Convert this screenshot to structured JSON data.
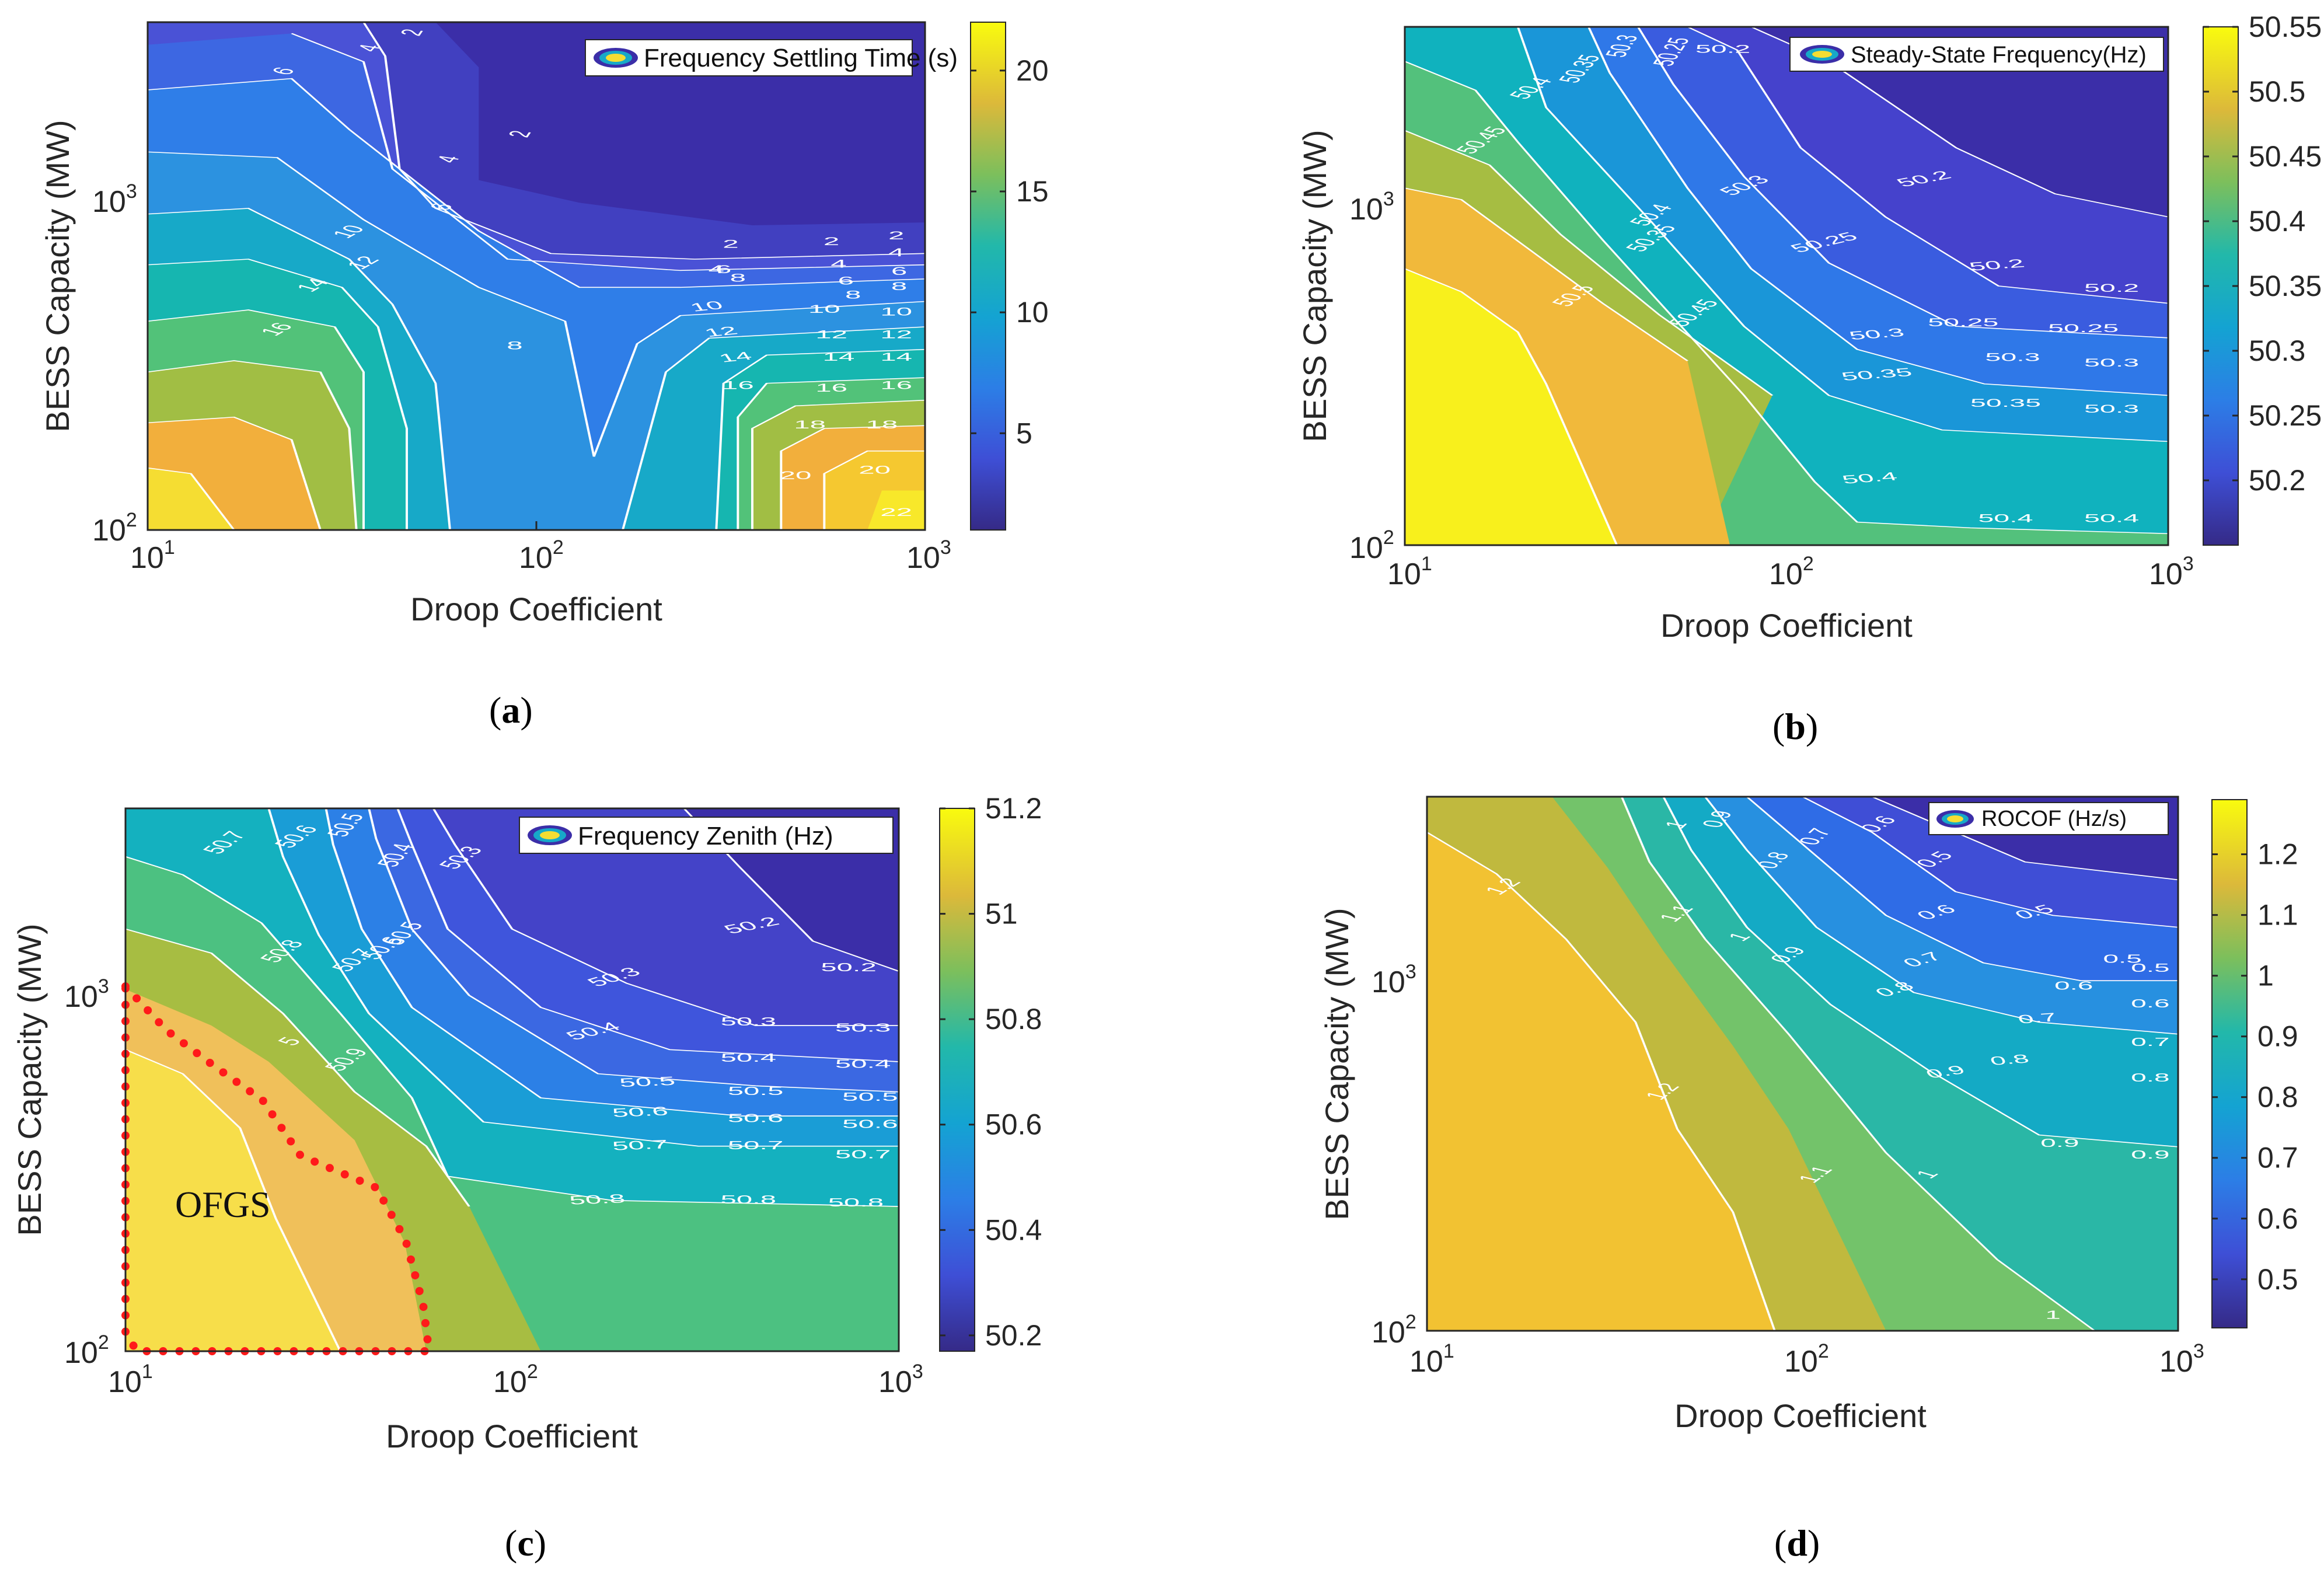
{
  "chart_data": [
    {
      "type": "contour",
      "id": "a",
      "caption_letter": "a",
      "legend": "Frequency Settling Time (s)",
      "xlabel": "Droop Coefficient",
      "ylabel": "BESS Capacity (MW)",
      "xscale": "log",
      "yscale": "log",
      "xlim": [
        10,
        1000
      ],
      "ylim": [
        100,
        3200
      ],
      "xticks": [
        {
          "base": "10",
          "exp": "1"
        },
        {
          "base": "10",
          "exp": "2"
        },
        {
          "base": "10",
          "exp": "3"
        }
      ],
      "yticks": [
        {
          "base": "10",
          "exp": "2"
        },
        {
          "base": "10",
          "exp": "3"
        }
      ],
      "colorbar": {
        "min": 1,
        "max": 22,
        "ticks": [
          "5",
          "10",
          "15",
          "20"
        ]
      },
      "levels": [
        22,
        20,
        18,
        16,
        14,
        12,
        10,
        8,
        6,
        4,
        2
      ],
      "contour_labels": [
        {
          "t": "2",
          "x": 190,
          "y": 20,
          "rot": -75
        },
        {
          "t": "4",
          "x": 160,
          "y": 48,
          "rot": -70
        },
        {
          "t": "6",
          "x": 100,
          "y": 90,
          "rot": -60
        },
        {
          "t": "2",
          "x": 265,
          "y": 200,
          "rot": -75
        },
        {
          "t": "4",
          "x": 215,
          "y": 245,
          "rot": -70
        },
        {
          "t": "6",
          "x": 210,
          "y": 330,
          "rot": -65
        },
        {
          "t": "10",
          "x": 145,
          "y": 375,
          "rot": -55
        },
        {
          "t": "12",
          "x": 155,
          "y": 430,
          "rot": -55
        },
        {
          "t": "14",
          "x": 120,
          "y": 470,
          "rot": -55
        },
        {
          "t": "16",
          "x": 95,
          "y": 548,
          "rot": -55
        },
        {
          "t": "8",
          "x": 255,
          "y": 580,
          "rot": 0
        },
        {
          "t": "2",
          "x": 405,
          "y": 400,
          "rot": 0
        },
        {
          "t": "4",
          "x": 395,
          "y": 445,
          "rot": 0
        },
        {
          "t": "6",
          "x": 400,
          "y": 445,
          "rot": 0
        },
        {
          "t": "8",
          "x": 410,
          "y": 460,
          "rot": 0
        },
        {
          "t": "10",
          "x": 390,
          "y": 510,
          "rot": -15
        },
        {
          "t": "12",
          "x": 400,
          "y": 555,
          "rot": -15
        },
        {
          "t": "14",
          "x": 410,
          "y": 600,
          "rot": -15
        },
        {
          "t": "16",
          "x": 410,
          "y": 650,
          "rot": 0
        },
        {
          "t": "2",
          "x": 475,
          "y": 395,
          "rot": 0
        },
        {
          "t": "4",
          "x": 480,
          "y": 435,
          "rot": 0
        },
        {
          "t": "6",
          "x": 485,
          "y": 465,
          "rot": 0
        },
        {
          "t": "8",
          "x": 490,
          "y": 490,
          "rot": 0
        },
        {
          "t": "10",
          "x": 470,
          "y": 515,
          "rot": 0
        },
        {
          "t": "12",
          "x": 475,
          "y": 560,
          "rot": 0
        },
        {
          "t": "14",
          "x": 480,
          "y": 600,
          "rot": 0
        },
        {
          "t": "16",
          "x": 475,
          "y": 655,
          "rot": 0
        },
        {
          "t": "18",
          "x": 460,
          "y": 720,
          "rot": 0
        },
        {
          "t": "20",
          "x": 450,
          "y": 810,
          "rot": 0
        },
        {
          "t": "2",
          "x": 520,
          "y": 385,
          "rot": 0
        },
        {
          "t": "4",
          "x": 520,
          "y": 415,
          "rot": 0
        },
        {
          "t": "6",
          "x": 522,
          "y": 448,
          "rot": 0
        },
        {
          "t": "8",
          "x": 522,
          "y": 475,
          "rot": 0
        },
        {
          "t": "10",
          "x": 520,
          "y": 520,
          "rot": 0
        },
        {
          "t": "12",
          "x": 520,
          "y": 560,
          "rot": 0
        },
        {
          "t": "14",
          "x": 520,
          "y": 600,
          "rot": 0
        },
        {
          "t": "16",
          "x": 520,
          "y": 650,
          "rot": 0
        },
        {
          "t": "18",
          "x": 510,
          "y": 720,
          "rot": 0
        },
        {
          "t": "20",
          "x": 505,
          "y": 800,
          "rot": 0
        },
        {
          "t": "22",
          "x": 520,
          "y": 875,
          "rot": 0
        }
      ]
    },
    {
      "type": "contour",
      "id": "b",
      "caption_letter": "b",
      "legend": "Steady-State Frequency(Hz)",
      "xlabel": "Droop Coefficient",
      "ylabel": "BESS Capacity (MW)",
      "xscale": "log",
      "yscale": "log",
      "xlim": [
        10,
        1000
      ],
      "ylim": [
        100,
        3200
      ],
      "xticks": [
        {
          "base": "10",
          "exp": "1"
        },
        {
          "base": "10",
          "exp": "2"
        },
        {
          "base": "10",
          "exp": "3"
        }
      ],
      "yticks": [
        {
          "base": "10",
          "exp": "2"
        },
        {
          "base": "10",
          "exp": "3"
        }
      ],
      "colorbar": {
        "min": 50.15,
        "max": 50.55,
        "ticks": [
          "50.2",
          "50.25",
          "50.3",
          "50.35",
          "50.4",
          "50.45",
          "50.5",
          "50.55"
        ]
      },
      "levels": [
        50.5,
        50.45,
        50.4,
        50.35,
        50.3,
        50.25,
        50.2
      ],
      "contour_labels": [
        {
          "t": "50.45",
          "x": 60,
          "y": 200,
          "rot": -60
        },
        {
          "t": "50.4",
          "x": 95,
          "y": 110,
          "rot": -60
        },
        {
          "t": "50.35",
          "x": 130,
          "y": 75,
          "rot": -70
        },
        {
          "t": "50.3",
          "x": 160,
          "y": 35,
          "rot": -75
        },
        {
          "t": "50.25",
          "x": 195,
          "y": 45,
          "rot": -75
        },
        {
          "t": "50.2",
          "x": 225,
          "y": 45,
          "rot": 0
        },
        {
          "t": "50.5",
          "x": 125,
          "y": 470,
          "rot": -60
        },
        {
          "t": "50.4",
          "x": 180,
          "y": 330,
          "rot": -60
        },
        {
          "t": "50.35",
          "x": 180,
          "y": 370,
          "rot": -60
        },
        {
          "t": "50.45",
          "x": 210,
          "y": 500,
          "rot": -60
        },
        {
          "t": "50.3",
          "x": 245,
          "y": 280,
          "rot": -45
        },
        {
          "t": "50.25",
          "x": 300,
          "y": 380,
          "rot": -30
        },
        {
          "t": "50.2",
          "x": 370,
          "y": 270,
          "rot": -25
        },
        {
          "t": "50.3",
          "x": 335,
          "y": 540,
          "rot": -10
        },
        {
          "t": "50.35",
          "x": 335,
          "y": 610,
          "rot": -10
        },
        {
          "t": "50.4",
          "x": 330,
          "y": 790,
          "rot": -10
        },
        {
          "t": "50.2",
          "x": 420,
          "y": 420,
          "rot": -10
        },
        {
          "t": "50.25",
          "x": 395,
          "y": 520,
          "rot": 0
        },
        {
          "t": "50.3",
          "x": 430,
          "y": 580,
          "rot": 0
        },
        {
          "t": "50.35",
          "x": 425,
          "y": 660,
          "rot": 0
        },
        {
          "t": "50.4",
          "x": 425,
          "y": 860,
          "rot": 0
        },
        {
          "t": "50.25",
          "x": 480,
          "y": 530,
          "rot": 0
        },
        {
          "t": "50.2",
          "x": 500,
          "y": 460,
          "rot": 0
        },
        {
          "t": "50.3",
          "x": 500,
          "y": 590,
          "rot": 0
        },
        {
          "t": "50.3",
          "x": 500,
          "y": 670,
          "rot": 0
        },
        {
          "t": "50.4",
          "x": 500,
          "y": 860,
          "rot": 0
        }
      ]
    },
    {
      "type": "contour",
      "id": "c",
      "caption_letter": "c",
      "legend": "Frequency Zenith (Hz)",
      "xlabel": "Droop Coefficient",
      "ylabel": "BESS Capacity (MW)",
      "xscale": "log",
      "yscale": "log",
      "xlim": [
        10,
        1000
      ],
      "ylim": [
        100,
        3200
      ],
      "xticks": [
        {
          "base": "10",
          "exp": "1"
        },
        {
          "base": "10",
          "exp": "2"
        },
        {
          "base": "10",
          "exp": "3"
        }
      ],
      "yticks": [
        {
          "base": "10",
          "exp": "2"
        },
        {
          "base": "10",
          "exp": "3"
        }
      ],
      "colorbar": {
        "min": 50.17,
        "max": 51.2,
        "ticks": [
          "50.2",
          "50.4",
          "50.6",
          "50.8",
          "51",
          "51.2"
        ]
      },
      "levels": [
        51.1,
        51.0,
        50.9,
        50.8,
        50.7,
        50.6,
        50.5,
        50.4,
        50.3,
        50.2
      ],
      "region_label": "OFGS",
      "contour_labels": [
        {
          "t": "50.7",
          "x": 75,
          "y": 60,
          "rot": -60
        },
        {
          "t": "50.6",
          "x": 125,
          "y": 50,
          "rot": -60
        },
        {
          "t": "50.5",
          "x": 160,
          "y": 30,
          "rot": -70
        },
        {
          "t": "50.4",
          "x": 195,
          "y": 80,
          "rot": -70
        },
        {
          "t": "50.3",
          "x": 240,
          "y": 85,
          "rot": -60
        },
        {
          "t": "50.2",
          "x": 340,
          "y": 60,
          "rot": -45
        },
        {
          "t": "50.8",
          "x": 115,
          "y": 240,
          "rot": -60
        },
        {
          "t": "50.7",
          "x": 165,
          "y": 255,
          "rot": -60
        },
        {
          "t": "50.6",
          "x": 185,
          "y": 235,
          "rot": -60
        },
        {
          "t": "50.5",
          "x": 200,
          "y": 210,
          "rot": -65
        },
        {
          "t": "50.9",
          "x": 160,
          "y": 420,
          "rot": -60
        },
        {
          "t": "5",
          "x": 120,
          "y": 390,
          "rot": -55
        },
        {
          "t": "50.3",
          "x": 345,
          "y": 285,
          "rot": -35
        },
        {
          "t": "50.4",
          "x": 330,
          "y": 375,
          "rot": -30
        },
        {
          "t": "50.2",
          "x": 440,
          "y": 200,
          "rot": -25
        },
        {
          "t": "50.5",
          "x": 365,
          "y": 460,
          "rot": -5
        },
        {
          "t": "50.6",
          "x": 360,
          "y": 510,
          "rot": -5
        },
        {
          "t": "50.7",
          "x": 360,
          "y": 565,
          "rot": -5
        },
        {
          "t": "50.8",
          "x": 330,
          "y": 655,
          "rot": -5
        },
        {
          "t": "50.3",
          "x": 435,
          "y": 360,
          "rot": 0
        },
        {
          "t": "50.4",
          "x": 435,
          "y": 420,
          "rot": 0
        },
        {
          "t": "50.5",
          "x": 440,
          "y": 475,
          "rot": 0
        },
        {
          "t": "50.6",
          "x": 440,
          "y": 520,
          "rot": 0
        },
        {
          "t": "50.7",
          "x": 440,
          "y": 565,
          "rot": 0
        },
        {
          "t": "50.8",
          "x": 435,
          "y": 655,
          "rot": 0
        },
        {
          "t": "50.2",
          "x": 505,
          "y": 270,
          "rot": 0
        },
        {
          "t": "50.3",
          "x": 515,
          "y": 370,
          "rot": 0
        },
        {
          "t": "50.4",
          "x": 515,
          "y": 430,
          "rot": 0
        },
        {
          "t": "50.5",
          "x": 520,
          "y": 485,
          "rot": 0
        },
        {
          "t": "50.6",
          "x": 520,
          "y": 530,
          "rot": 0
        },
        {
          "t": "50.7",
          "x": 515,
          "y": 580,
          "rot": 0
        },
        {
          "t": "50.8",
          "x": 510,
          "y": 660,
          "rot": 0
        }
      ]
    },
    {
      "type": "contour",
      "id": "d",
      "caption_letter": "d",
      "legend": "ROCOF (Hz/s)",
      "xlabel": "Droop Coefficient",
      "ylabel": "BESS Capacity (MW)",
      "xscale": "log",
      "yscale": "log",
      "xlim": [
        10,
        1000
      ],
      "ylim": [
        100,
        3200
      ],
      "xticks": [
        {
          "base": "10",
          "exp": "1"
        },
        {
          "base": "10",
          "exp": "2"
        },
        {
          "base": "10",
          "exp": "3"
        }
      ],
      "yticks": [
        {
          "base": "10",
          "exp": "2"
        },
        {
          "base": "10",
          "exp": "3"
        }
      ],
      "colorbar": {
        "min": 0.42,
        "max": 1.29,
        "ticks": [
          "0.5",
          "0.6",
          "0.7",
          "0.8",
          "0.9",
          "1",
          "1.1",
          "1.2"
        ]
      },
      "levels": [
        1.2,
        1.1,
        1.0,
        0.9,
        0.8,
        0.7,
        0.6,
        0.5
      ],
      "contour_labels": [
        {
          "t": "1.2",
          "x": 60,
          "y": 155,
          "rot": -55
        },
        {
          "t": "1.1",
          "x": 185,
          "y": 200,
          "rot": -60
        },
        {
          "t": "1",
          "x": 185,
          "y": 50,
          "rot": -65
        },
        {
          "t": "0.9",
          "x": 215,
          "y": 40,
          "rot": -70
        },
        {
          "t": "0.8",
          "x": 255,
          "y": 110,
          "rot": -65
        },
        {
          "t": "0.7",
          "x": 285,
          "y": 70,
          "rot": -65
        },
        {
          "t": "0.6",
          "x": 330,
          "y": 50,
          "rot": -55
        },
        {
          "t": "0.5",
          "x": 370,
          "y": 110,
          "rot": -50
        },
        {
          "t": "1",
          "x": 230,
          "y": 240,
          "rot": -55
        },
        {
          "t": "0.9",
          "x": 265,
          "y": 270,
          "rot": -55
        },
        {
          "t": "0.8",
          "x": 340,
          "y": 330,
          "rot": -35
        },
        {
          "t": "0.7",
          "x": 360,
          "y": 280,
          "rot": -35
        },
        {
          "t": "0.6",
          "x": 370,
          "y": 200,
          "rot": -35
        },
        {
          "t": "0.5",
          "x": 440,
          "y": 200,
          "rot": -30
        },
        {
          "t": "1.2",
          "x": 175,
          "y": 500,
          "rot": -60
        },
        {
          "t": "1.1",
          "x": 285,
          "y": 640,
          "rot": -60
        },
        {
          "t": "1",
          "x": 365,
          "y": 640,
          "rot": -55
        },
        {
          "t": "0.9",
          "x": 375,
          "y": 470,
          "rot": -20
        },
        {
          "t": "0.8",
          "x": 420,
          "y": 450,
          "rot": -10
        },
        {
          "t": "0.7",
          "x": 440,
          "y": 380,
          "rot": -10
        },
        {
          "t": "0.6",
          "x": 465,
          "y": 325,
          "rot": 0
        },
        {
          "t": "0.5",
          "x": 500,
          "y": 280,
          "rot": 0
        },
        {
          "t": "0.9",
          "x": 455,
          "y": 590,
          "rot": 0
        },
        {
          "t": "1",
          "x": 450,
          "y": 880,
          "rot": 0
        },
        {
          "t": "0.6",
          "x": 520,
          "y": 355,
          "rot": 0
        },
        {
          "t": "0.5",
          "x": 520,
          "y": 295,
          "rot": 0
        },
        {
          "t": "0.7",
          "x": 520,
          "y": 420,
          "rot": 0
        },
        {
          "t": "0.8",
          "x": 520,
          "y": 480,
          "rot": 0
        },
        {
          "t": "0.9",
          "x": 520,
          "y": 610,
          "rot": 0
        }
      ]
    }
  ]
}
